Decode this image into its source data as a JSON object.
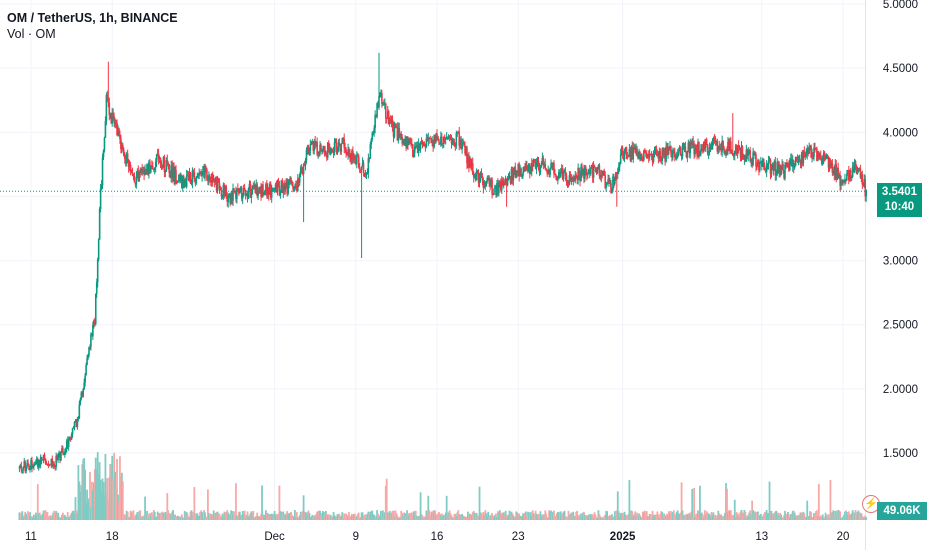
{
  "header": {
    "symbol": "OM / TetherUS, 1h, BINANCE",
    "volume_label": "Vol · OM"
  },
  "last_price": {
    "value": "3.5401",
    "countdown": "10:40"
  },
  "volume_tag": "49.06K",
  "colors": {
    "up": "#089981",
    "down": "#f23645",
    "vol_up": "#80cbc4",
    "vol_down": "#f7a9a7",
    "grid": "#f0f3fa",
    "price_line": "#089981"
  },
  "icons": [
    "alert-icon"
  ],
  "chart_data": {
    "type": "candlestick",
    "title": "OM / TetherUS, 1h, BINANCE",
    "interval": "1h",
    "y_axis": {
      "ticks": [
        "5.0000",
        "4.5000",
        "4.0000",
        "3.5000",
        "3.0000",
        "2.5000",
        "2.0000",
        "1.5000"
      ],
      "ylim": [
        1.0,
        5.0
      ]
    },
    "x_axis": {
      "tick_labels": [
        {
          "label": "11",
          "date": "2024-11-11"
        },
        {
          "label": "18",
          "date": "2024-11-18"
        },
        {
          "label": "Dec",
          "date": "2024-12-02"
        },
        {
          "label": "9",
          "date": "2024-12-09"
        },
        {
          "label": "16",
          "date": "2024-12-16"
        },
        {
          "label": "23",
          "date": "2024-12-23"
        },
        {
          "label": "2025",
          "date": "2025-01-01"
        },
        {
          "label": "13",
          "date": "2025-01-13"
        },
        {
          "label": "20",
          "date": "2025-01-20"
        }
      ],
      "xlim": [
        "2024-11-10",
        "2025-01-22"
      ]
    },
    "close_path": [
      [
        "2024-11-10",
        1.38
      ],
      [
        "2024-11-12",
        1.45
      ],
      [
        "2024-11-13",
        1.42
      ],
      [
        "2024-11-14",
        1.55
      ],
      [
        "2024-11-15",
        1.75
      ],
      [
        "2024-11-16",
        2.3
      ],
      [
        "2024-11-16T12",
        2.55
      ],
      [
        "2024-11-17",
        3.5
      ],
      [
        "2024-11-17T12",
        4.25
      ],
      [
        "2024-11-18",
        4.1
      ],
      [
        "2024-11-19",
        3.85
      ],
      [
        "2024-11-20",
        3.65
      ],
      [
        "2024-11-22",
        3.8
      ],
      [
        "2024-11-24",
        3.6
      ],
      [
        "2024-11-26",
        3.7
      ],
      [
        "2024-11-28",
        3.5
      ],
      [
        "2024-11-30",
        3.55
      ],
      [
        "2024-12-02",
        3.55
      ],
      [
        "2024-12-04",
        3.6
      ],
      [
        "2024-12-05",
        3.9
      ],
      [
        "2024-12-06",
        3.85
      ],
      [
        "2024-12-08",
        3.9
      ],
      [
        "2024-12-09",
        3.8
      ],
      [
        "2024-12-10",
        3.7
      ],
      [
        "2024-12-11",
        4.3
      ],
      [
        "2024-12-12",
        4.05
      ],
      [
        "2024-12-14",
        3.85
      ],
      [
        "2024-12-16",
        3.95
      ],
      [
        "2024-12-18",
        3.95
      ],
      [
        "2024-12-19",
        3.7
      ],
      [
        "2024-12-21",
        3.55
      ],
      [
        "2024-12-23",
        3.7
      ],
      [
        "2024-12-25",
        3.75
      ],
      [
        "2024-12-27",
        3.65
      ],
      [
        "2024-12-30",
        3.7
      ],
      [
        "2024-12-31",
        3.55
      ],
      [
        "2025-01-01",
        3.85
      ],
      [
        "2025-01-03",
        3.8
      ],
      [
        "2025-01-06",
        3.85
      ],
      [
        "2025-01-09",
        3.9
      ],
      [
        "2025-01-11",
        3.85
      ],
      [
        "2025-01-13",
        3.75
      ],
      [
        "2025-01-15",
        3.7
      ],
      [
        "2025-01-17",
        3.85
      ],
      [
        "2025-01-19",
        3.75
      ],
      [
        "2025-01-20",
        3.6
      ],
      [
        "2025-01-21",
        3.75
      ],
      [
        "2025-01-22",
        3.54
      ]
    ],
    "spikes": [
      {
        "date": "2024-11-17T16",
        "high": 4.55
      },
      {
        "date": "2024-12-09T12",
        "low": 3.02
      },
      {
        "date": "2024-12-11",
        "high": 4.62
      },
      {
        "date": "2024-12-04T12",
        "low": 3.3
      },
      {
        "date": "2024-12-22",
        "low": 3.42
      },
      {
        "date": "2024-12-31T12",
        "low": 3.42
      },
      {
        "date": "2025-01-10T12",
        "high": 4.15
      }
    ],
    "last_price": 3.5401,
    "volume_last": "49.06K",
    "grid": true
  }
}
